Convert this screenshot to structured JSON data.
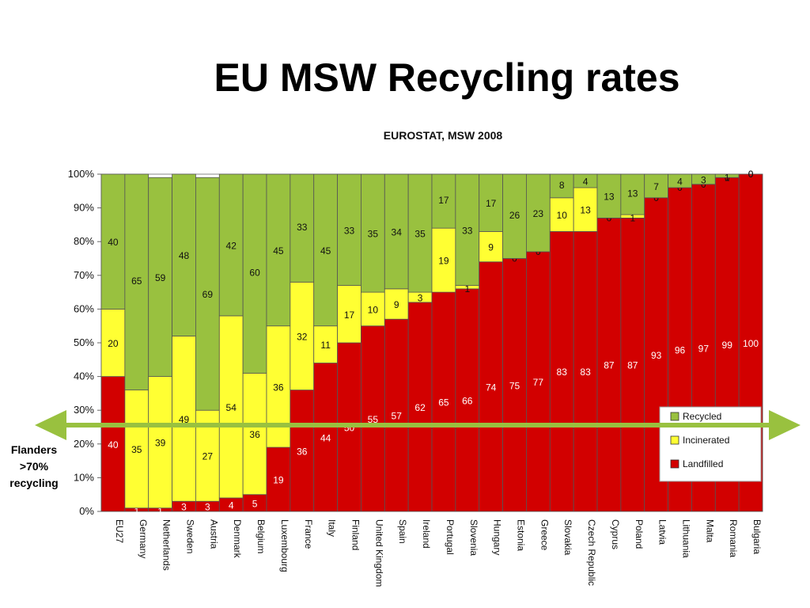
{
  "title": "EU MSW Recycling rates",
  "side_note": {
    "lines": [
      "Flanders",
      ">70%",
      "recycling"
    ]
  },
  "colors": {
    "recycled": "#99c13f",
    "incinerated": "#ffff33",
    "landfilled": "#d20000",
    "arrow": "#99c13f"
  },
  "chart_data": {
    "type": "bar",
    "stacked": true,
    "title": "EUROSTAT, MSW 2008",
    "ylim": [
      0,
      100
    ],
    "y_ticks": [
      "0%",
      "10%",
      "20%",
      "30%",
      "40%",
      "50%",
      "60%",
      "70%",
      "80%",
      "90%",
      "100%"
    ],
    "legend": {
      "position": "right",
      "entries": [
        "Recycled",
        "Incinerated",
        "Landfilled"
      ]
    },
    "categories": [
      "EU27",
      "Germany",
      "Netherlands",
      "Sweden",
      "Austria",
      "Denmark",
      "Belgium",
      "Luxembourg",
      "France",
      "Italy",
      "Finland",
      "United Kingdom",
      "Spain",
      "Ireland",
      "Portugal",
      "Slovenia",
      "Hungary",
      "Estonia",
      "Greece",
      "Slovakia",
      "Czech Republic",
      "Cyprus",
      "Poland",
      "Latvia",
      "Lithuania",
      "Malta",
      "Romania",
      "Bulgaria"
    ],
    "series": [
      {
        "name": "Landfilled",
        "values": [
          40,
          1,
          1,
          3,
          3,
          4,
          5,
          19,
          36,
          44,
          50,
          55,
          57,
          62,
          65,
          66,
          74,
          75,
          77,
          83,
          83,
          87,
          87,
          93,
          96,
          97,
          99,
          100
        ]
      },
      {
        "name": "Incinerated",
        "values": [
          20,
          35,
          39,
          49,
          27,
          54,
          36,
          36,
          32,
          11,
          17,
          10,
          9,
          3,
          19,
          1,
          9,
          0,
          0,
          10,
          13,
          0,
          1,
          0,
          0,
          0,
          0,
          0
        ]
      },
      {
        "name": "Recycled",
        "values": [
          40,
          65,
          59,
          48,
          69,
          42,
          60,
          45,
          33,
          45,
          33,
          35,
          34,
          35,
          17,
          33,
          17,
          26,
          23,
          8,
          4,
          13,
          13,
          7,
          4,
          3,
          1,
          0
        ]
      }
    ]
  }
}
